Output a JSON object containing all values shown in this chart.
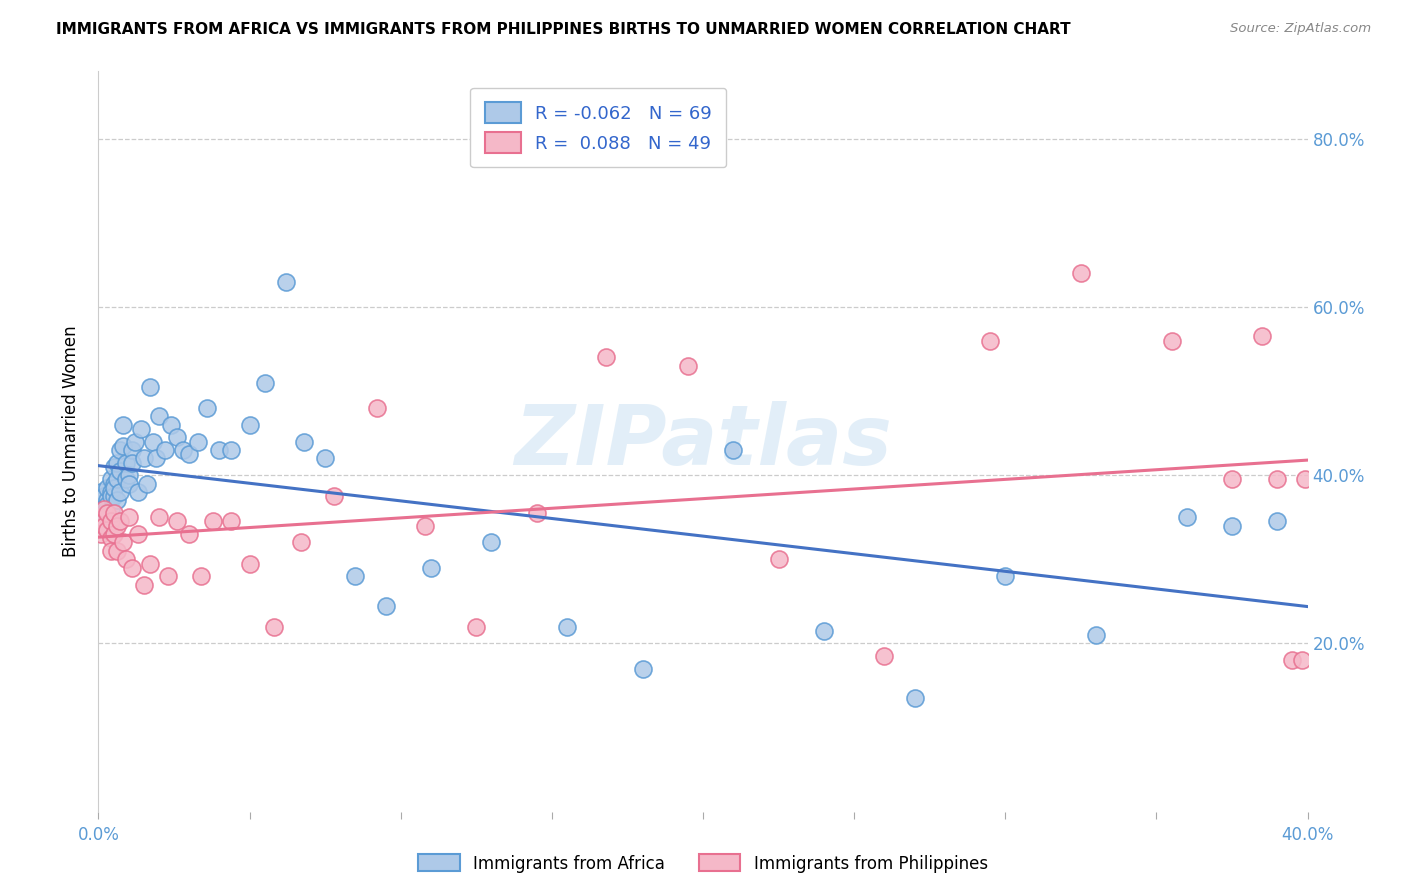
{
  "title": "IMMIGRANTS FROM AFRICA VS IMMIGRANTS FROM PHILIPPINES BIRTHS TO UNMARRIED WOMEN CORRELATION CHART",
  "source": "Source: ZipAtlas.com",
  "ylabel": "Births to Unmarried Women",
  "xlim": [
    0.0,
    0.4
  ],
  "ylim": [
    0.0,
    0.88
  ],
  "watermark": "ZIPatlas",
  "africa_color": "#aec9e8",
  "philippines_color": "#f5b8c8",
  "africa_edge_color": "#5b9bd5",
  "philippines_edge_color": "#e87090",
  "africa_line_color": "#4472c4",
  "philippines_line_color": "#e87090",
  "background_color": "#ffffff",
  "grid_color": "#cccccc",
  "tick_color": "#5b9bd5",
  "africa_x": [
    0.001,
    0.001,
    0.001,
    0.002,
    0.002,
    0.002,
    0.002,
    0.003,
    0.003,
    0.003,
    0.004,
    0.004,
    0.004,
    0.004,
    0.005,
    0.005,
    0.005,
    0.005,
    0.006,
    0.006,
    0.006,
    0.007,
    0.007,
    0.007,
    0.008,
    0.008,
    0.009,
    0.009,
    0.01,
    0.01,
    0.011,
    0.011,
    0.012,
    0.013,
    0.014,
    0.015,
    0.016,
    0.017,
    0.018,
    0.019,
    0.02,
    0.022,
    0.024,
    0.026,
    0.028,
    0.03,
    0.033,
    0.036,
    0.04,
    0.044,
    0.05,
    0.055,
    0.062,
    0.068,
    0.075,
    0.085,
    0.095,
    0.11,
    0.13,
    0.155,
    0.18,
    0.21,
    0.24,
    0.27,
    0.3,
    0.33,
    0.36,
    0.375,
    0.39
  ],
  "africa_y": [
    0.37,
    0.36,
    0.38,
    0.36,
    0.375,
    0.355,
    0.345,
    0.37,
    0.385,
    0.365,
    0.38,
    0.395,
    0.36,
    0.375,
    0.39,
    0.375,
    0.41,
    0.385,
    0.395,
    0.415,
    0.37,
    0.43,
    0.405,
    0.38,
    0.46,
    0.435,
    0.395,
    0.415,
    0.4,
    0.39,
    0.43,
    0.415,
    0.44,
    0.38,
    0.455,
    0.42,
    0.39,
    0.505,
    0.44,
    0.42,
    0.47,
    0.43,
    0.46,
    0.445,
    0.43,
    0.425,
    0.44,
    0.48,
    0.43,
    0.43,
    0.46,
    0.51,
    0.63,
    0.44,
    0.42,
    0.28,
    0.245,
    0.29,
    0.32,
    0.22,
    0.17,
    0.43,
    0.215,
    0.135,
    0.28,
    0.21,
    0.35,
    0.34,
    0.345
  ],
  "philippines_x": [
    0.001,
    0.001,
    0.002,
    0.002,
    0.003,
    0.003,
    0.004,
    0.004,
    0.004,
    0.005,
    0.005,
    0.006,
    0.006,
    0.007,
    0.008,
    0.009,
    0.01,
    0.011,
    0.013,
    0.015,
    0.017,
    0.02,
    0.023,
    0.026,
    0.03,
    0.034,
    0.038,
    0.044,
    0.05,
    0.058,
    0.067,
    0.078,
    0.092,
    0.108,
    0.125,
    0.145,
    0.168,
    0.195,
    0.225,
    0.26,
    0.295,
    0.325,
    0.355,
    0.375,
    0.385,
    0.39,
    0.395,
    0.398,
    0.399
  ],
  "philippines_y": [
    0.35,
    0.33,
    0.34,
    0.36,
    0.335,
    0.355,
    0.325,
    0.345,
    0.31,
    0.33,
    0.355,
    0.34,
    0.31,
    0.345,
    0.32,
    0.3,
    0.35,
    0.29,
    0.33,
    0.27,
    0.295,
    0.35,
    0.28,
    0.345,
    0.33,
    0.28,
    0.345,
    0.345,
    0.295,
    0.22,
    0.32,
    0.375,
    0.48,
    0.34,
    0.22,
    0.355,
    0.54,
    0.53,
    0.3,
    0.185,
    0.56,
    0.64,
    0.56,
    0.395,
    0.565,
    0.395,
    0.18,
    0.18,
    0.395
  ]
}
